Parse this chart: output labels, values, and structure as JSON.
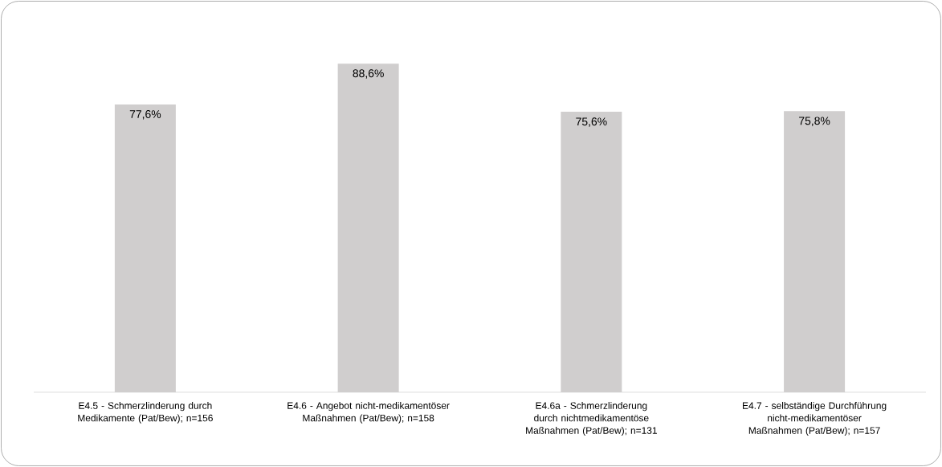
{
  "chart_data": {
    "type": "bar",
    "categories": [
      "E4.5 - Schmerzlinderung durch Medikamente (Pat/Bew); n=156",
      "E4.6 - Angebot nicht-medikamentöser Maßnahmen (Pat/Bew); n=158",
      "E4.6a - Schmerzlinderung durch nichtmedikamentöse Maßnahmen (Pat/Bew); n=131",
      "E4.7 - selbständige Durchführung nicht-medikamentöser Maßnahmen (Pat/Bew); n=157"
    ],
    "values": [
      77.6,
      88.6,
      75.6,
      75.8
    ],
    "value_labels": [
      "77,6%",
      "88,6%",
      "75,6%",
      "75,8%"
    ],
    "color": "#d0cece",
    "tick_labels": "x"
  }
}
